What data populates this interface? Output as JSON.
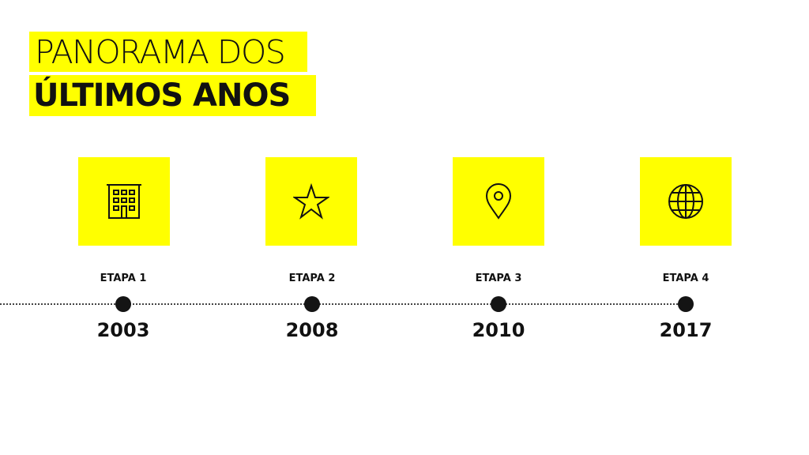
{
  "title": {
    "line1": "PANORAMA DOS",
    "line2": "ÚLTIMOS ANOS"
  },
  "colors": {
    "accent": "#ffff00",
    "text": "#111111"
  },
  "stages": [
    {
      "label": "ETAPA 1",
      "year": "2003",
      "icon": "building-icon"
    },
    {
      "label": "ETAPA 2",
      "year": "2008",
      "icon": "star-icon"
    },
    {
      "label": "ETAPA 3",
      "year": "2010",
      "icon": "map-pin-icon"
    },
    {
      "label": "ETAPA 4",
      "year": "2017",
      "icon": "globe-icon"
    }
  ]
}
